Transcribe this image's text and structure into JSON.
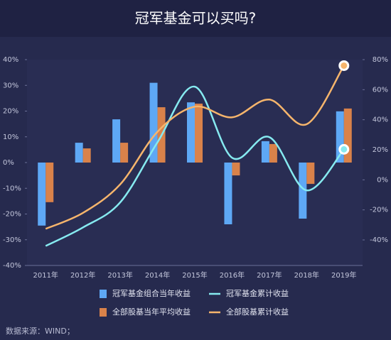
{
  "chart_data": {
    "type": "bar-line",
    "title": "冠军基金可以买吗?",
    "source": "数据来源：WIND；",
    "categories": [
      "2011年",
      "2012年",
      "2013年",
      "2014年",
      "2015年",
      "2016年",
      "2017年",
      "2018年",
      "2019年"
    ],
    "series": [
      {
        "name": "冠军基金组合当年收益",
        "type": "bar",
        "color": "#5ea8f5",
        "values": [
          -24.5,
          7.7,
          16.8,
          31,
          23.4,
          -24,
          8.3,
          -21.8,
          19.9
        ]
      },
      {
        "name": "全部股基当年平均收益",
        "type": "bar",
        "color": "#d9824a",
        "values": [
          -15.4,
          5.5,
          7.7,
          21.5,
          22.9,
          -5,
          7.2,
          -8.3,
          21
        ]
      },
      {
        "name": "冠军基金累计收益",
        "type": "line",
        "axis": "y2",
        "color": "#86eaf0",
        "values": [
          -44,
          -31.7,
          -15,
          25,
          62,
          14.7,
          28.4,
          -7,
          20.3
        ]
      },
      {
        "name": "全部股基累计收益",
        "type": "line",
        "axis": "y2",
        "color": "#f6b56c",
        "values": [
          -32.6,
          -22,
          -3,
          32,
          48.7,
          41.6,
          53.4,
          37,
          76
        ]
      }
    ],
    "ylim": [
      -40,
      40
    ],
    "yticks": [
      {
        "value": -40,
        "label": "-40%"
      },
      {
        "value": -30,
        "label": "-30%"
      },
      {
        "value": -20,
        "label": "-20%"
      },
      {
        "value": -10,
        "label": "-10%"
      },
      {
        "value": 0,
        "label": "0%"
      },
      {
        "value": 10,
        "label": "10%"
      },
      {
        "value": 20,
        "label": "20%"
      },
      {
        "value": 30,
        "label": "30%"
      },
      {
        "value": 40,
        "label": "40%"
      }
    ],
    "y2lim": [
      -57,
      80
    ],
    "y2ticks": [
      {
        "value": -40,
        "label": "-40%"
      },
      {
        "value": -20,
        "label": "-20%"
      },
      {
        "value": 0,
        "label": "0%"
      },
      {
        "value": 20,
        "label": "20%"
      },
      {
        "value": 40,
        "label": "40%"
      },
      {
        "value": 60,
        "label": "60%"
      },
      {
        "value": 80,
        "label": "80%"
      }
    ]
  }
}
